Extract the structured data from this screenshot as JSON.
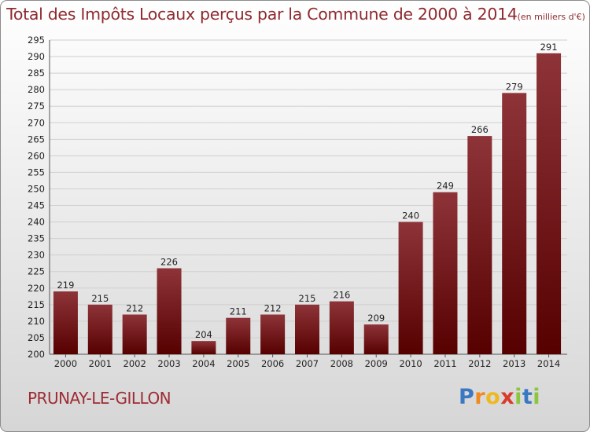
{
  "title": "Total des Impôts Locaux perçus par la Commune de 2000 à 2014",
  "unit_note": "(en milliers d'€)",
  "commune_name": "PRUNAY-LE-GILLON",
  "brand": {
    "letters": [
      "P",
      "r",
      "o",
      "x",
      "i",
      "t",
      "i"
    ],
    "colors": [
      "#3a78c2",
      "#f08a1f",
      "#f0b81f",
      "#d93b2b",
      "#8cc63f",
      "#3a78c2",
      "#8cc63f"
    ]
  },
  "colors": {
    "bar_top": "#8e3439",
    "bar_bottom": "#560000",
    "grid": "#cfcfcf",
    "text": "#222222",
    "title": "#8f2a2f"
  },
  "chart_data": {
    "type": "bar",
    "title": "Total des Impôts Locaux perçus par la Commune de 2000 à 2014",
    "xlabel": "",
    "ylabel": "",
    "categories": [
      "2000",
      "2001",
      "2002",
      "2003",
      "2004",
      "2005",
      "2006",
      "2007",
      "2008",
      "2009",
      "2010",
      "2011",
      "2012",
      "2013",
      "2014"
    ],
    "values": [
      219,
      215,
      212,
      226,
      204,
      211,
      212,
      215,
      216,
      209,
      240,
      249,
      266,
      279,
      291
    ],
    "ylim": [
      200,
      295
    ],
    "yticks": [
      200,
      205,
      210,
      215,
      220,
      225,
      230,
      235,
      240,
      245,
      250,
      255,
      260,
      265,
      270,
      275,
      280,
      285,
      290,
      295
    ],
    "grid": true,
    "legend": "none"
  }
}
